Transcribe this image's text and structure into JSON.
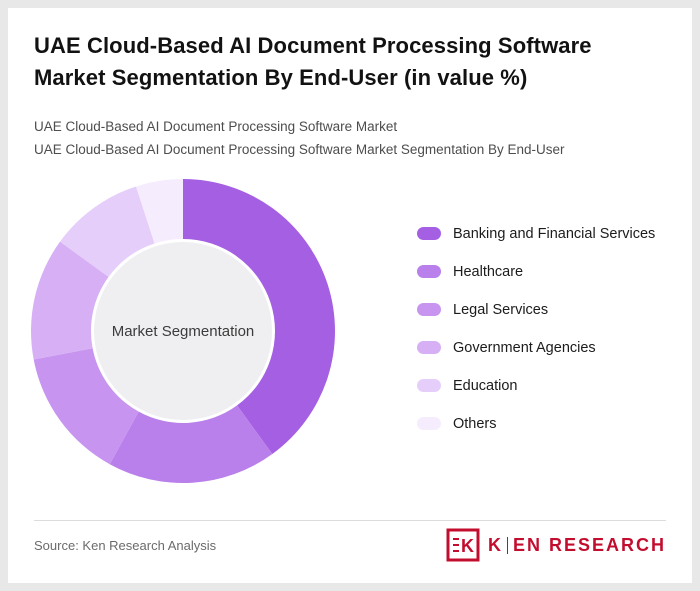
{
  "header": {
    "title_line1": "UAE Cloud-Based AI Document Processing Software",
    "title_line2": "Market Segmentation By End-User (in value %)",
    "subtitle_line1": "UAE Cloud-Based AI Document Processing Software Market",
    "subtitle_line2": "UAE Cloud-Based AI Document Processing Software Market Segmentation By End-User"
  },
  "chart_data": {
    "type": "pie",
    "variant": "donut",
    "title": "UAE Cloud-Based AI Document Processing Software Market Segmentation By End-User (in value %)",
    "center_label": "Market Segmentation",
    "categories": [
      "Banking and Financial Services",
      "Healthcare",
      "Legal Services",
      "Government Agencies",
      "Education",
      "Others"
    ],
    "values": [
      40,
      18,
      14,
      13,
      10,
      5
    ],
    "colors": [
      "#A55FE3",
      "#B97FEA",
      "#C794EF",
      "#D6AFF5",
      "#E6CEFA",
      "#F5EDFD"
    ],
    "center_color": "#EFEEF1",
    "legend_position": "right",
    "start_angle_deg": 0,
    "direction": "clockwise"
  },
  "footer": {
    "source": "Source: Ken Research Analysis",
    "logo": {
      "icon_letter": "K",
      "brand_k": "K",
      "brand_rest": "EN RESEARCH"
    }
  }
}
